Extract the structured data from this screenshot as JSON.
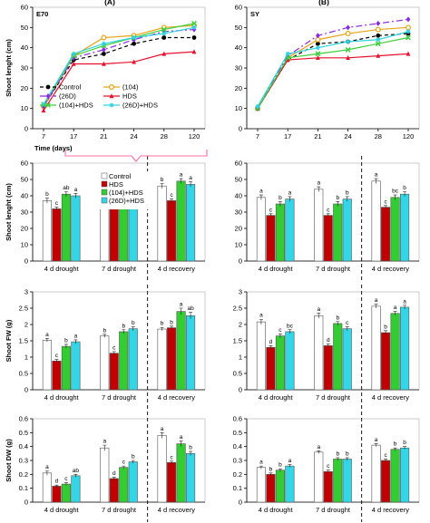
{
  "colors": {
    "control": "#000000",
    "c104": "#e8a317",
    "c26d": "#8a2be2",
    "hds": "#e8102c",
    "c104hds": "#3ecf3e",
    "c26dhds": "#2fd3e0",
    "bar_control": "#ffffff",
    "bar_hds": "#c00000",
    "bar_104hds": "#33cc33",
    "bar_26dhds": "#33d6e6",
    "bracket": "#ff6fa0"
  },
  "icons": {
    "bracket": "pink-bracket-icon"
  },
  "chart_data": [
    {
      "id": "lineA",
      "type": "line",
      "panel_letter": "E70",
      "title": "(A)",
      "ylabel": "Shoot lenght (cm)",
      "xlabel": "Time (days)",
      "x": [
        "7",
        "17",
        "21",
        "24",
        "28",
        "120"
      ],
      "ylim": [
        0,
        60
      ],
      "yticks": [
        0,
        10,
        20,
        30,
        40,
        50,
        60
      ],
      "legend": {
        "items": [
          "Control",
          "(104)",
          "(26D)",
          "HDS",
          "(104)+HDS",
          "(26D)+HDS"
        ],
        "placement": "bottom"
      },
      "series": [
        {
          "name": "Control",
          "color_key": "control",
          "dash": "4,3",
          "marker": "circle",
          "values": [
            11,
            34,
            37,
            42,
            45,
            45
          ]
        },
        {
          "name": "(104)",
          "color_key": "c104",
          "dash": "",
          "marker": "circle-open",
          "values": [
            11,
            36,
            45,
            46,
            50,
            51
          ]
        },
        {
          "name": "(26D)",
          "color_key": "c26d",
          "dash": "7,3,2,3",
          "marker": "diamond",
          "values": [
            11,
            35,
            39,
            44,
            48,
            49
          ]
        },
        {
          "name": "HDS",
          "color_key": "hds",
          "dash": "",
          "marker": "triangle",
          "values": [
            9,
            32,
            32,
            33,
            37,
            38
          ]
        },
        {
          "name": "(104)+HDS",
          "color_key": "c104hds",
          "dash": "",
          "marker": "cross",
          "values": [
            12,
            36,
            41,
            45,
            49,
            52
          ]
        },
        {
          "name": "(26D)+HDS",
          "color_key": "c26dhds",
          "dash": "",
          "marker": "star",
          "values": [
            12,
            37,
            42,
            45,
            47,
            50
          ]
        }
      ]
    },
    {
      "id": "lineB",
      "type": "line",
      "panel_letter": "SY",
      "title": "(B)",
      "ylabel": "",
      "xlabel": "",
      "x": [
        "7",
        "17",
        "21",
        "24",
        "28",
        "120"
      ],
      "ylim": [
        0,
        60
      ],
      "yticks": [
        0,
        10,
        20,
        30,
        40,
        50,
        60
      ],
      "legend": null,
      "series": [
        {
          "name": "Control",
          "color_key": "control",
          "dash": "4,3",
          "marker": "circle",
          "values": [
            10,
            34,
            42,
            43,
            46,
            47
          ]
        },
        {
          "name": "(104)",
          "color_key": "c104",
          "dash": "",
          "marker": "circle-open",
          "values": [
            10,
            35,
            44,
            47,
            49,
            50
          ]
        },
        {
          "name": "(26D)",
          "color_key": "c26d",
          "dash": "7,3,2,3",
          "marker": "diamond",
          "values": [
            10,
            36,
            46,
            50,
            52,
            54
          ]
        },
        {
          "name": "HDS",
          "color_key": "hds",
          "dash": "",
          "marker": "triangle",
          "values": [
            10,
            34,
            35,
            35,
            36,
            37
          ]
        },
        {
          "name": "(104)+HDS",
          "color_key": "c104hds",
          "dash": "",
          "marker": "cross",
          "values": [
            10,
            35,
            37,
            39,
            42,
            45
          ]
        },
        {
          "name": "(26D)+HDS",
          "color_key": "c26dhds",
          "dash": "",
          "marker": "star",
          "values": [
            11,
            37,
            40,
            43,
            44,
            48
          ]
        }
      ]
    },
    {
      "id": "barL1",
      "type": "bar",
      "ylabel": "Shoot lenght (cm)",
      "categories": [
        "4 d drought",
        "7 d drought",
        "4 d recovery"
      ],
      "ylim": [
        0,
        60
      ],
      "yticks": [
        0,
        10,
        20,
        30,
        40,
        50,
        60
      ],
      "legend": {
        "items": [
          "Control",
          "HDS",
          "(104)+HDS",
          "(26D)+HDS"
        ],
        "placement": "top-center"
      },
      "series": [
        {
          "name": "Control",
          "values": [
            37,
            42,
            46
          ],
          "errors": [
            1.5,
            1.5,
            1.5
          ],
          "letters": [
            "b",
            "b",
            "b"
          ]
        },
        {
          "name": "HDS",
          "values": [
            32,
            33,
            37
          ],
          "errors": [
            1,
            1,
            1
          ],
          "letters": [
            "c",
            "c",
            "c"
          ]
        },
        {
          "name": "(104)+HDS",
          "values": [
            41,
            45,
            49
          ],
          "errors": [
            1.5,
            1.5,
            1.5
          ],
          "letters": [
            "ab",
            "a",
            "a"
          ]
        },
        {
          "name": "(26D)+HDS",
          "values": [
            40,
            45,
            47
          ],
          "errors": [
            1.5,
            1.5,
            1.5
          ],
          "letters": [
            "a",
            "a",
            "a"
          ]
        }
      ]
    },
    {
      "id": "barR1",
      "type": "bar",
      "ylabel": "",
      "categories": [
        "4 d drought",
        "7 d drought",
        "4 d recovery"
      ],
      "ylim": [
        0,
        60
      ],
      "yticks": [
        0,
        10,
        20,
        30,
        40,
        50,
        60
      ],
      "legend": null,
      "series": [
        {
          "name": "Control",
          "values": [
            39,
            44,
            49
          ],
          "errors": [
            1.5,
            1.5,
            1.5
          ],
          "letters": [
            "a",
            "a",
            "a"
          ]
        },
        {
          "name": "HDS",
          "values": [
            28,
            28,
            33
          ],
          "errors": [
            1,
            1,
            1
          ],
          "letters": [
            "c",
            "c",
            "c"
          ]
        },
        {
          "name": "(104)+HDS",
          "values": [
            35,
            35,
            39
          ],
          "errors": [
            1.5,
            1.5,
            1.5
          ],
          "letters": [
            "b",
            "b",
            "bc"
          ]
        },
        {
          "name": "(26D)+HDS",
          "values": [
            38,
            38,
            41
          ],
          "errors": [
            1.5,
            1.5,
            1.5
          ],
          "letters": [
            "a",
            "b",
            "b"
          ]
        }
      ]
    },
    {
      "id": "barL2",
      "type": "bar",
      "ylabel": "Shoot FW (g)",
      "categories": [
        "4 d drought",
        "7 d drought",
        "4 d recovery"
      ],
      "ylim": [
        0,
        3
      ],
      "yticks": [
        "0",
        "0.5",
        "1",
        "1.5",
        "2",
        "2.5",
        "3"
      ],
      "legend": null,
      "series": [
        {
          "name": "Control",
          "values": [
            1.52,
            1.65,
            1.86
          ],
          "errors": [
            0.05,
            0.05,
            0.05
          ],
          "letters": [
            "a",
            "b",
            "b"
          ]
        },
        {
          "name": "HDS",
          "values": [
            0.88,
            1.12,
            1.9
          ],
          "errors": [
            0.05,
            0.05,
            0.05
          ],
          "letters": [
            "c",
            "c",
            "b"
          ]
        },
        {
          "name": "(104)+HDS",
          "values": [
            1.33,
            1.78,
            2.4
          ],
          "errors": [
            0.06,
            0.06,
            0.1
          ],
          "letters": [
            "b",
            "b",
            "a"
          ]
        },
        {
          "name": "(26D)+HDS",
          "values": [
            1.47,
            1.87,
            2.27
          ],
          "errors": [
            0.06,
            0.06,
            0.1
          ],
          "letters": [
            "a",
            "b",
            "ab"
          ]
        }
      ]
    },
    {
      "id": "barR2",
      "type": "bar",
      "ylabel": "",
      "categories": [
        "4 d drought",
        "7 d drought",
        "4 d recovery"
      ],
      "ylim": [
        0,
        3
      ],
      "yticks": [
        "0",
        "0.5",
        "1",
        "1.5",
        "2",
        "2.5",
        "3"
      ],
      "legend": null,
      "series": [
        {
          "name": "Control",
          "values": [
            2.08,
            2.27,
            2.56
          ],
          "errors": [
            0.08,
            0.08,
            0.06
          ],
          "letters": [
            "a",
            "a",
            "a"
          ]
        },
        {
          "name": "HDS",
          "values": [
            1.3,
            1.35,
            1.75
          ],
          "errors": [
            0.05,
            0.05,
            0.06
          ],
          "letters": [
            "d",
            "d",
            "b"
          ]
        },
        {
          "name": "(104)+HDS",
          "values": [
            1.65,
            2.03,
            2.34
          ],
          "errors": [
            0.06,
            0.06,
            0.06
          ],
          "letters": [
            "c",
            "b",
            "a"
          ]
        },
        {
          "name": "(26D)+HDS",
          "values": [
            1.78,
            1.87,
            2.53
          ],
          "errors": [
            0.06,
            0.06,
            0.06
          ],
          "letters": [
            "bc",
            "c",
            "a"
          ]
        }
      ]
    },
    {
      "id": "barL3",
      "type": "bar",
      "ylabel": "Shoot DW (g)",
      "categories": [
        "4 d drought",
        "7 d drought",
        "4 d recovery"
      ],
      "ylim": [
        0,
        0.6
      ],
      "yticks": [
        "0",
        "0.1",
        "0.2",
        "0.3",
        "0.4",
        "0.5",
        "0.6"
      ],
      "legend": null,
      "series": [
        {
          "name": "Control",
          "values": [
            0.21,
            0.39,
            0.48
          ],
          "errors": [
            0.015,
            0.02,
            0.02
          ],
          "letters": [
            "a",
            "a",
            "a"
          ]
        },
        {
          "name": "HDS",
          "values": [
            0.115,
            0.17,
            0.285
          ],
          "errors": [
            0.008,
            0.01,
            0.01
          ],
          "letters": [
            "d",
            "d",
            "c"
          ]
        },
        {
          "name": "(104)+HDS",
          "values": [
            0.13,
            0.25,
            0.42
          ],
          "errors": [
            0.01,
            0.01,
            0.02
          ],
          "letters": [
            "c",
            "c",
            "a"
          ]
        },
        {
          "name": "(26D)+HDS",
          "values": [
            0.19,
            0.29,
            0.35
          ],
          "errors": [
            0.01,
            0.01,
            0.015
          ],
          "letters": [
            "ab",
            "b",
            "b"
          ]
        }
      ]
    },
    {
      "id": "barR3",
      "type": "bar",
      "ylabel": "",
      "categories": [
        "4 d drought",
        "7 d drought",
        "4 d recovery"
      ],
      "ylim": [
        0,
        0.6
      ],
      "yticks": [
        "0",
        "0.1",
        "0.2",
        "0.3",
        "0.4",
        "0.5",
        "0.6"
      ],
      "legend": null,
      "series": [
        {
          "name": "Control",
          "values": [
            0.25,
            0.36,
            0.41
          ],
          "errors": [
            0.01,
            0.01,
            0.01
          ],
          "letters": [
            "a",
            "a",
            "a"
          ]
        },
        {
          "name": "HDS",
          "values": [
            0.2,
            0.22,
            0.3
          ],
          "errors": [
            0.01,
            0.01,
            0.01
          ],
          "letters": [
            "b",
            "c",
            "c"
          ]
        },
        {
          "name": "(104)+HDS",
          "values": [
            0.23,
            0.31,
            0.38
          ],
          "errors": [
            0.01,
            0.01,
            0.01
          ],
          "letters": [
            "b",
            "b",
            "b"
          ]
        },
        {
          "name": "(26D)+HDS",
          "values": [
            0.26,
            0.31,
            0.39
          ],
          "errors": [
            0.01,
            0.01,
            0.01
          ],
          "letters": [
            "a",
            "b",
            "b"
          ]
        }
      ]
    }
  ]
}
